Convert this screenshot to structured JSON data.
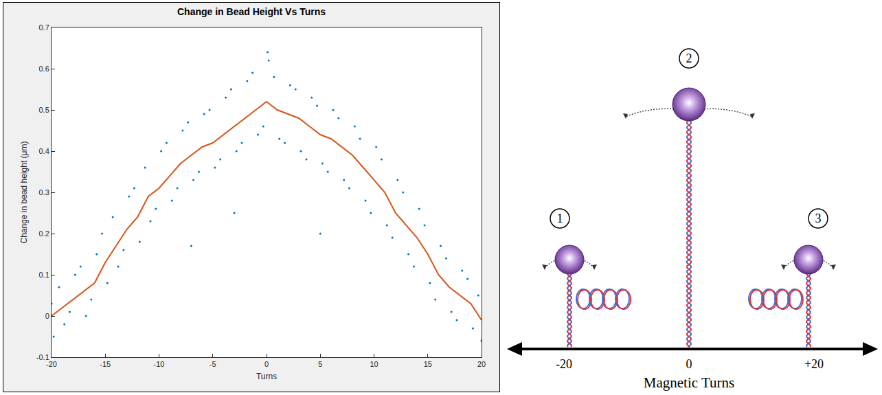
{
  "chart_data": {
    "type": "scatter",
    "title": "Change in Bead Height Vs Turns",
    "x_label": "Turns",
    "y_label": "Change in bead height (μm)",
    "xlim": [
      -20,
      20
    ],
    "xticks": [
      -20,
      -15,
      -10,
      -5,
      0,
      5,
      10,
      15,
      20
    ],
    "ylim": [
      -0.1,
      0.7
    ],
    "yticks": [
      -0.1,
      0,
      0.1,
      0.2,
      0.3,
      0.4,
      0.5,
      0.6,
      0.7
    ],
    "grid": false,
    "series": [
      {
        "type": "scatter",
        "marker": "dot",
        "color": "#0072bd",
        "x": [
          -20,
          -19.8,
          -19.3,
          -18.8,
          -18.3,
          -17.8,
          -17.3,
          -16.8,
          -16.3,
          -15.8,
          -15.3,
          -14.8,
          -14.3,
          -13.8,
          -13.3,
          -12.8,
          -12.3,
          -11.8,
          -11.3,
          -10.8,
          -10.3,
          -9.8,
          -9.3,
          -8.8,
          -8.3,
          -7.8,
          -7.3,
          -6.8,
          -6.3,
          -5.8,
          -5.3,
          -4.8,
          -4.3,
          -3.8,
          -3.3,
          -2.8,
          -2.3,
          -1.8,
          -1.3,
          -0.8,
          -0.3,
          0.2,
          0.7,
          1.2,
          1.7,
          2.2,
          2.7,
          3.2,
          3.7,
          4.2,
          4.7,
          5.2,
          5.7,
          6.2,
          6.7,
          7.2,
          7.7,
          8.2,
          8.7,
          9.2,
          9.7,
          10.2,
          10.7,
          11.2,
          11.7,
          12.2,
          12.7,
          13.2,
          13.7,
          14.2,
          14.7,
          15.2,
          15.7,
          16.2,
          16.7,
          17.2,
          17.7,
          18.2,
          18.7,
          19.2,
          19.7,
          20,
          0.1,
          -3,
          -7,
          5
        ],
        "values": [
          0.03,
          -0.05,
          0.07,
          -0.02,
          0.01,
          0.1,
          0.12,
          0.0,
          0.04,
          0.15,
          0.2,
          0.08,
          0.24,
          0.12,
          0.16,
          0.29,
          0.31,
          0.18,
          0.36,
          0.23,
          0.26,
          0.4,
          0.42,
          0.28,
          0.31,
          0.45,
          0.47,
          0.33,
          0.35,
          0.49,
          0.5,
          0.36,
          0.38,
          0.53,
          0.55,
          0.4,
          0.42,
          0.57,
          0.59,
          0.44,
          0.46,
          0.62,
          0.58,
          0.43,
          0.42,
          0.56,
          0.55,
          0.4,
          0.38,
          0.53,
          0.51,
          0.37,
          0.35,
          0.5,
          0.48,
          0.33,
          0.31,
          0.46,
          0.43,
          0.28,
          0.25,
          0.41,
          0.38,
          0.22,
          0.19,
          0.33,
          0.3,
          0.15,
          0.12,
          0.26,
          0.22,
          0.08,
          0.04,
          0.17,
          0.14,
          0.01,
          -0.01,
          0.11,
          0.09,
          -0.03,
          0.05,
          -0.06,
          0.64,
          0.25,
          0.17,
          0.2
        ]
      },
      {
        "type": "line",
        "line_style": "solid",
        "color": "#d95319",
        "x": [
          -20,
          -19,
          -18,
          -17,
          -16,
          -15,
          -14,
          -13,
          -12,
          -11,
          -10,
          -9,
          -8,
          -7,
          -6,
          -5,
          -4,
          -3,
          -2,
          -1,
          0,
          1,
          2,
          3,
          4,
          5,
          6,
          7,
          8,
          9,
          10,
          11,
          12,
          13,
          14,
          15,
          16,
          17,
          18,
          19,
          20
        ],
        "values": [
          0.0,
          0.02,
          0.04,
          0.06,
          0.08,
          0.13,
          0.17,
          0.21,
          0.24,
          0.29,
          0.31,
          0.34,
          0.37,
          0.39,
          0.41,
          0.42,
          0.44,
          0.46,
          0.48,
          0.5,
          0.52,
          0.5,
          0.49,
          0.48,
          0.46,
          0.44,
          0.43,
          0.41,
          0.39,
          0.36,
          0.33,
          0.3,
          0.25,
          0.22,
          0.19,
          0.15,
          0.1,
          0.07,
          0.05,
          0.03,
          -0.01
        ]
      }
    ]
  },
  "diagram": {
    "axis_label": "Magnetic Turns",
    "ticks": [
      -20,
      0,
      {
        "value": 20,
        "label": "+20"
      }
    ],
    "states": [
      {
        "label": "1",
        "turns": -20
      },
      {
        "label": "2",
        "turns": 0
      },
      {
        "label": "3",
        "turns": 20
      }
    ]
  }
}
